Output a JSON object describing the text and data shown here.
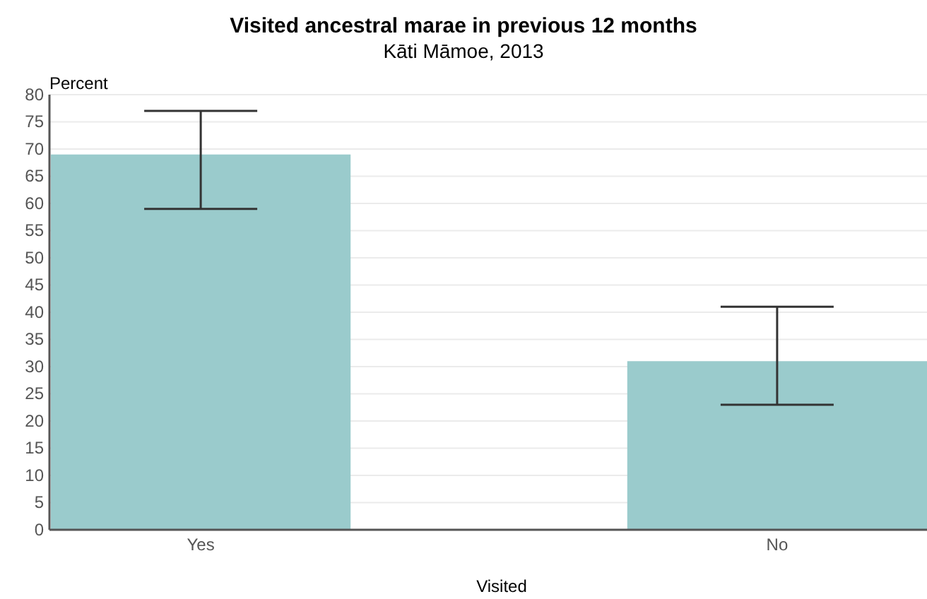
{
  "chart_data": {
    "type": "bar",
    "title": "Visited ancestral marae in previous 12 months",
    "subtitle": "Kāti Māmoe, 2013",
    "xlabel": "Visited",
    "ylabel": "Percent",
    "categories": [
      "Yes",
      "No"
    ],
    "values": [
      69,
      31
    ],
    "errors": [
      [
        59,
        77
      ],
      [
        23,
        41
      ]
    ],
    "color": "#9acbcc",
    "ylim": [
      0,
      80
    ],
    "yticks": [
      0,
      5,
      10,
      15,
      20,
      25,
      30,
      35,
      40,
      45,
      50,
      55,
      60,
      65,
      70,
      75,
      80
    ],
    "grid": "y",
    "legend": false
  }
}
